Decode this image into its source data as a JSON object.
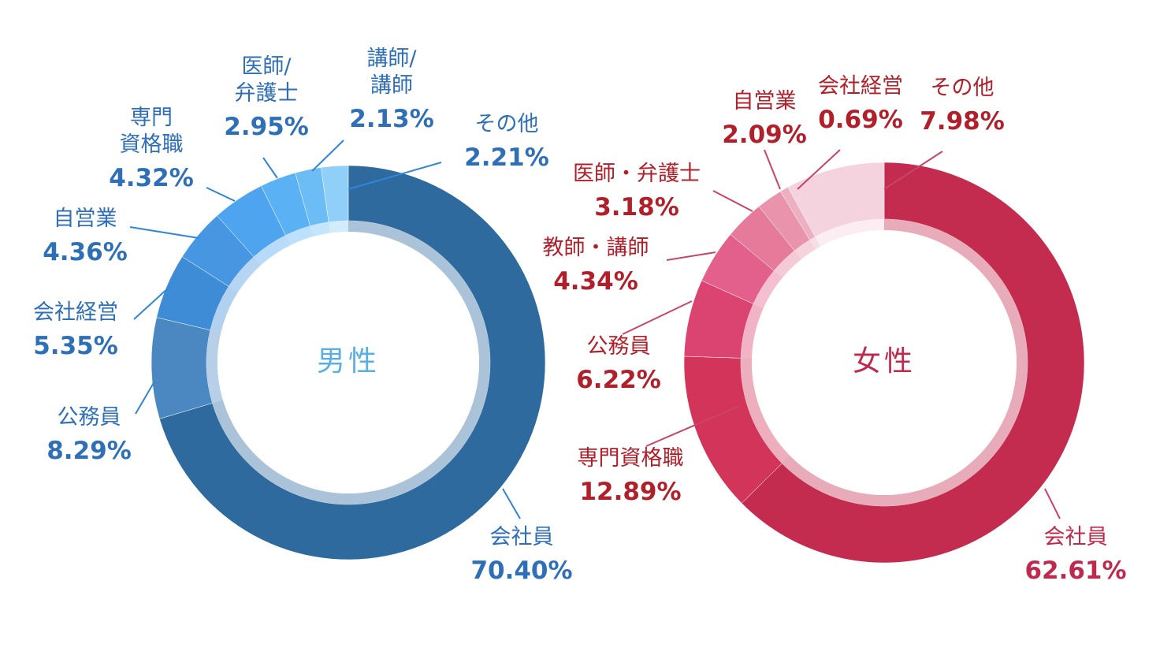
{
  "chart_data": [
    {
      "type": "pie",
      "title": "男性",
      "title_color": "#5aaee0",
      "label_color": "#2e6fb7",
      "leader_color": "#2f86d6",
      "slices": [
        {
          "label": "会社員",
          "value": 70.4,
          "pct_text": "70.40%",
          "color": "#2e6a9e"
        },
        {
          "label": "公務員",
          "value": 8.29,
          "pct_text": "8.29%",
          "color": "#4b88c2"
        },
        {
          "label": "会社経営",
          "value": 5.35,
          "pct_text": "5.35%",
          "color": "#3f8cd6"
        },
        {
          "label": "自営業",
          "value": 4.36,
          "pct_text": "4.36%",
          "color": "#4796e2"
        },
        {
          "label": "専門\n資格職",
          "value": 4.32,
          "pct_text": "4.32%",
          "color": "#4ea4ef"
        },
        {
          "label": "医師/\n弁護士",
          "value": 2.95,
          "pct_text": "2.95%",
          "color": "#5ab1f4"
        },
        {
          "label": "講師/\n講師",
          "value": 2.13,
          "pct_text": "2.13%",
          "color": "#6cbdf6"
        },
        {
          "label": "その他",
          "value": 2.21,
          "pct_text": "2.21%",
          "color": "#8fcff8"
        }
      ]
    },
    {
      "type": "pie",
      "title": "女性",
      "title_color": "#c0294e",
      "label_color": "#b01f2a",
      "leader_color": "#c8446a",
      "slices": [
        {
          "label": "会社員",
          "value": 62.61,
          "pct_text": "62.61%",
          "color": "#c42c4f",
          "label_color": "#c0294e"
        },
        {
          "label": "専門資格職",
          "value": 12.89,
          "pct_text": "12.89%",
          "color": "#d2345a"
        },
        {
          "label": "公務員",
          "value": 6.22,
          "pct_text": "6.22%",
          "color": "#db4370"
        },
        {
          "label": "教師・講師",
          "value": 4.34,
          "pct_text": "4.34%",
          "color": "#e2608b"
        },
        {
          "label": "医師・弁護士",
          "value": 3.18,
          "pct_text": "3.18%",
          "color": "#e57a9a"
        },
        {
          "label": "自営業",
          "value": 2.09,
          "pct_text": "2.09%",
          "color": "#e993ad"
        },
        {
          "label": "会社経営",
          "value": 0.69,
          "pct_text": "0.69%",
          "color": "#edb0c3"
        },
        {
          "label": "その他",
          "value": 7.98,
          "pct_text": "7.98%",
          "color": "#f4d3de"
        }
      ]
    }
  ]
}
